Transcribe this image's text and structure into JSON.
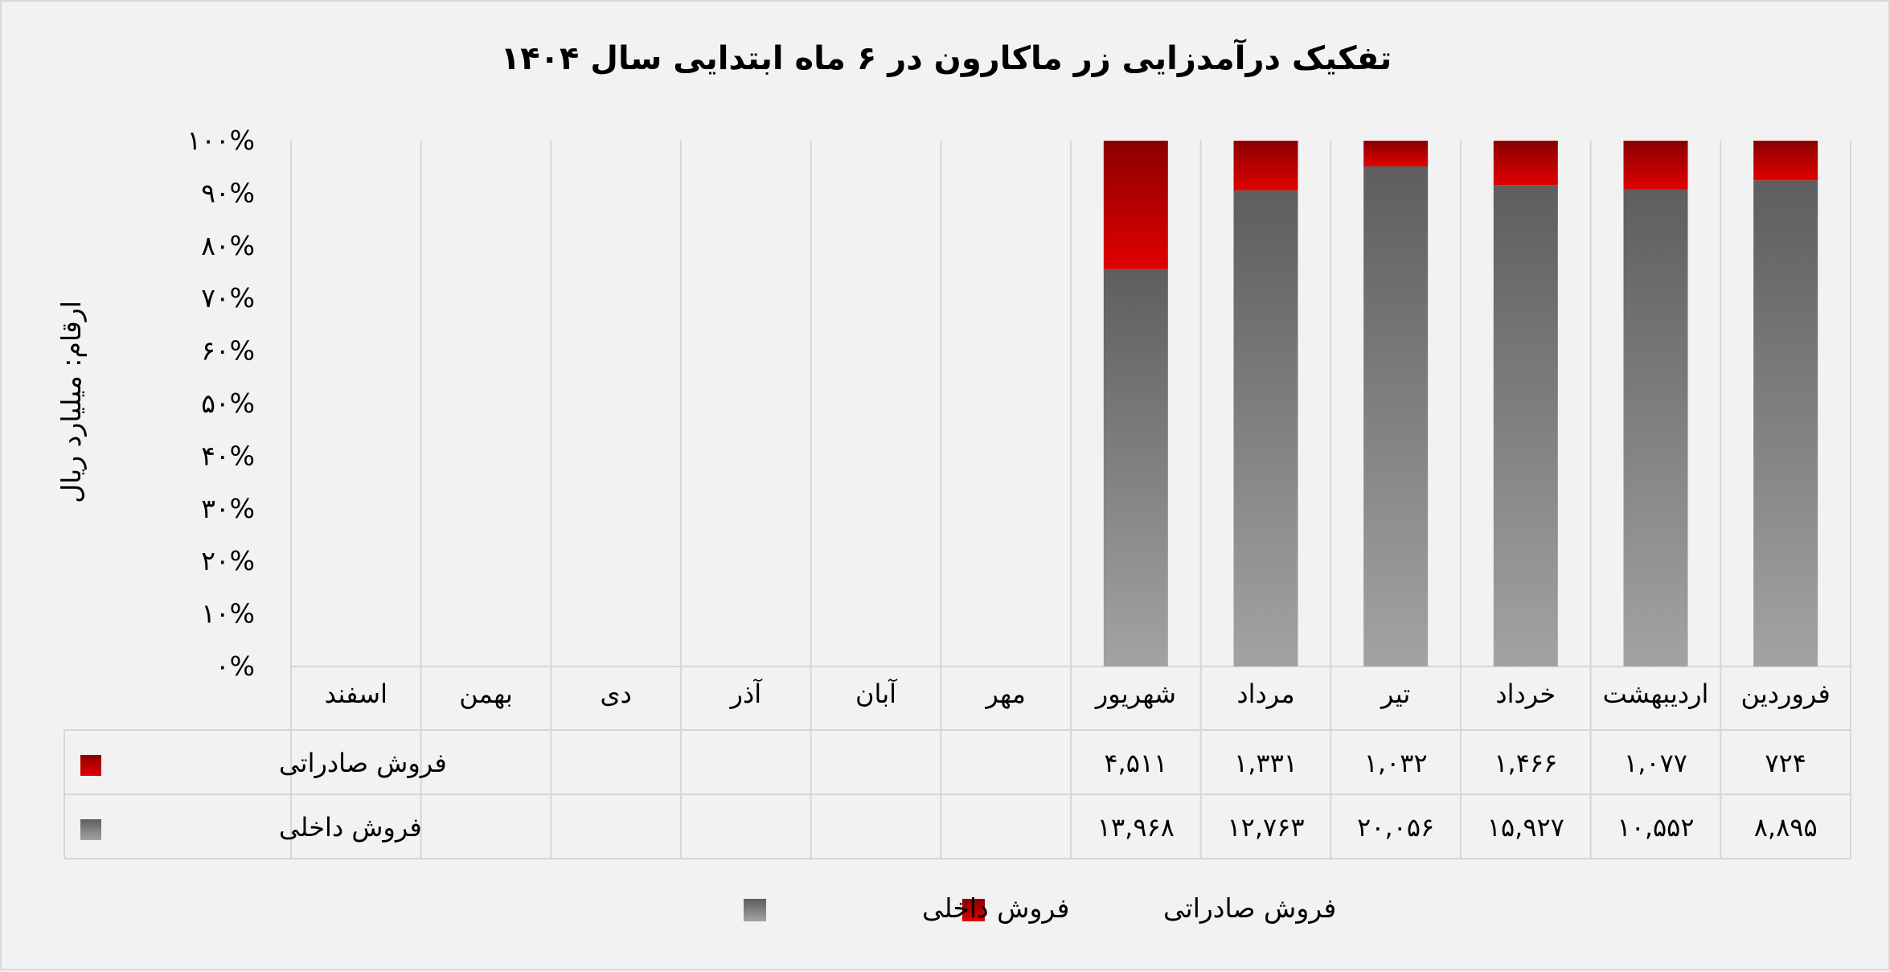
{
  "chart_data": {
    "type": "bar",
    "stacked": "percent",
    "title": "تفکیک درآمدزایی زر ماکارون در ۶ ماه ابتدایی سال ۱۴۰۴",
    "ylabel": "ارقام: میلیارد ریال",
    "ylim": [
      0,
      100
    ],
    "y_ticks": [
      "۰%",
      "۱۰%",
      "۲۰%",
      "۳۰%",
      "۴۰%",
      "۵۰%",
      "۶۰%",
      "۷۰%",
      "۸۰%",
      "۹۰%",
      "۱۰۰%"
    ],
    "categories": [
      "فروردین",
      "اردیبهشت",
      "خرداد",
      "تیر",
      "مرداد",
      "شهریور",
      "مهر",
      "آبان",
      "آذر",
      "دی",
      "بهمن",
      "اسفند"
    ],
    "series": [
      {
        "name": "فروش صادراتی",
        "values": [
          724,
          1077,
          1466,
          1032,
          1331,
          4511,
          null,
          null,
          null,
          null,
          null,
          null
        ],
        "labels": [
          "۷۲۴",
          "۱,۰۷۷",
          "۱,۴۶۶",
          "۱,۰۳۲",
          "۱,۳۳۱",
          "۴,۵۱۱",
          "",
          "",
          "",
          "",
          "",
          ""
        ],
        "color_top": "#8b0000",
        "color_bottom": "#e00000"
      },
      {
        "name": "فروش داخلی",
        "values": [
          8895,
          10552,
          15927,
          20056,
          12763,
          13968,
          null,
          null,
          null,
          null,
          null,
          null
        ],
        "labels": [
          "۸,۸۹۵",
          "۱۰,۵۵۲",
          "۱۵,۹۲۷",
          "۲۰,۰۵۶",
          "۱۲,۷۶۳",
          "۱۳,۹۶۸",
          "",
          "",
          "",
          "",
          "",
          ""
        ],
        "color_top": "#5e5e5e",
        "color_bottom": "#a3a3a3"
      }
    ],
    "grid": true,
    "legend_position": "bottom",
    "data_table": true
  }
}
